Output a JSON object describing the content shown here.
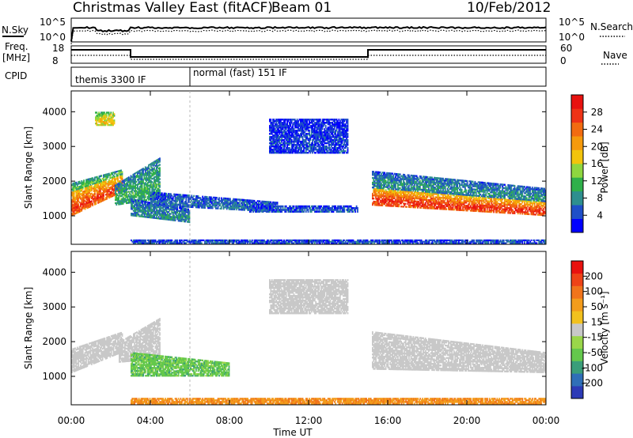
{
  "header": {
    "site": "Christmas Valley East (fitACF)",
    "beam": "Beam 01",
    "date": "10/Feb/2012"
  },
  "strip_panels": {
    "sky_label": "N.Sky",
    "search_label": "N.Search",
    "freq_label_line1": "Freq.",
    "freq_label_line2": "[MHz]",
    "nave_label": "Nave",
    "cpid_label": "CPID",
    "noise_left_ticks": [
      "10^5",
      "10^0"
    ],
    "noise_right_ticks": [
      "10^5",
      "10^0"
    ],
    "freq_left_ticks": [
      "18",
      "8"
    ],
    "nave_right_ticks": [
      "60",
      "0"
    ],
    "cpid_segments": [
      {
        "label": "themis 3300 IF",
        "start_hour": 0
      },
      {
        "label": "normal (fast) 151 IF",
        "start_hour": 6
      }
    ],
    "freq_steps": [
      {
        "start_hour": 0,
        "end_hour": 3,
        "level": "high"
      },
      {
        "start_hour": 3,
        "end_hour": 15,
        "level": "low"
      },
      {
        "start_hour": 15,
        "end_hour": 24,
        "level": "high"
      }
    ]
  },
  "axis": {
    "xlabel": "Time UT",
    "xticks": [
      "00:00",
      "04:00",
      "08:00",
      "12:00",
      "16:00",
      "20:00",
      "00:00"
    ],
    "ylabel": "Slant Range [km]",
    "yticks": [
      "1000",
      "2000",
      "3000",
      "4000"
    ]
  },
  "colorbars": {
    "power": {
      "label": "Power [dB]",
      "ticks": [
        "4",
        "8",
        "12",
        "16",
        "20",
        "24",
        "28"
      ],
      "colors": [
        "#0000ff",
        "#1f4fc8",
        "#2e8f8f",
        "#2fb04a",
        "#8fd63f",
        "#f2c40c",
        "#f59a0c",
        "#f26b10",
        "#ee3316",
        "#e8120f"
      ]
    },
    "velocity": {
      "label": "Velocity [m s⁻¹]",
      "ticks": [
        "200",
        "100",
        "50",
        "15",
        "-15",
        "-50",
        "-100",
        "-200"
      ],
      "colors": [
        "#2c3ab6",
        "#2f6fb8",
        "#3a9e7a",
        "#64c84c",
        "#9ad64a",
        "#c8c8c8",
        "#f2c11e",
        "#f39c1c",
        "#f1741b",
        "#ee4317",
        "#e8120f"
      ]
    }
  },
  "chart_data": {
    "type": "heatmap",
    "title": "Christmas Valley East (fitACF) Beam 01 10/Feb/2012",
    "xlabel": "Time UT",
    "ylabel": "Slant Range [km]",
    "xlim_hours": [
      0,
      24
    ],
    "ylim_km": [
      180,
      4600
    ],
    "panels": [
      {
        "name": "Power [dB]",
        "scale": [
          0,
          30
        ],
        "regions": [
          {
            "t0": 0.0,
            "t1": 2.6,
            "r0_start": 1000,
            "r1_start": 1700,
            "r0_end": 1700,
            "r1_end": 2200,
            "value": 26
          },
          {
            "t0": 0.0,
            "t1": 2.6,
            "r0_start": 1700,
            "r1_start": 1950,
            "r0_end": 2200,
            "r1_end": 2350,
            "value": 12
          },
          {
            "t0": 2.2,
            "t1": 4.5,
            "r0_start": 1300,
            "r1_start": 1900,
            "r0_end": 1500,
            "r1_end": 2700,
            "value": 10
          },
          {
            "t0": 3.0,
            "t1": 6.0,
            "r0_start": 1000,
            "r1_start": 1500,
            "r0_end": 800,
            "r1_end": 1200,
            "value": 8
          },
          {
            "t0": 4.0,
            "t1": 10.5,
            "r0_start": 1300,
            "r1_start": 1700,
            "r0_end": 1100,
            "r1_end": 1400,
            "value": 6
          },
          {
            "t0": 9.0,
            "t1": 14.5,
            "r0_start": 1100,
            "r1_start": 1300,
            "r0_end": 1100,
            "r1_end": 1300,
            "value": 5
          },
          {
            "t0": 3.0,
            "t1": 24.0,
            "r0_start": 200,
            "r1_start": 320,
            "r0_end": 200,
            "r1_end": 320,
            "value": 5
          },
          {
            "t0": 15.2,
            "t1": 24.0,
            "r0_start": 1300,
            "r1_start": 1800,
            "r0_end": 1000,
            "r1_end": 1400,
            "value": 27
          },
          {
            "t0": 15.2,
            "t1": 24.0,
            "r0_start": 1800,
            "r1_start": 2300,
            "r0_end": 1400,
            "r1_end": 1800,
            "value": 8
          },
          {
            "t0": 10.0,
            "t1": 14.0,
            "r0_start": 2800,
            "r1_start": 3800,
            "r0_end": 2800,
            "r1_end": 3800,
            "value": 4
          },
          {
            "t0": 1.2,
            "t1": 2.2,
            "r0_start": 3600,
            "r1_start": 4000,
            "r0_end": 3600,
            "r1_end": 4000,
            "value": 18
          }
        ]
      },
      {
        "name": "Velocity [m s⁻¹]",
        "scale": [
          -250,
          250
        ],
        "regions": [
          {
            "t0": 0.0,
            "t1": 2.6,
            "r0_start": 1100,
            "r1_start": 1800,
            "r0_end": 1700,
            "r1_end": 2300,
            "value": 0
          },
          {
            "t0": 2.4,
            "t1": 4.5,
            "r0_start": 1400,
            "r1_start": 2000,
            "r0_end": 1500,
            "r1_end": 2700,
            "value": 0
          },
          {
            "t0": 3.0,
            "t1": 8.0,
            "r0_start": 1000,
            "r1_start": 1700,
            "r0_end": 1000,
            "r1_end": 1400,
            "value": 40
          },
          {
            "t0": 3.0,
            "t1": 24.0,
            "r0_start": 200,
            "r1_start": 380,
            "r0_end": 200,
            "r1_end": 380,
            "value": -45
          },
          {
            "t0": 15.2,
            "t1": 24.0,
            "r0_start": 1200,
            "r1_start": 2300,
            "r0_end": 1100,
            "r1_end": 1700,
            "value": 0
          },
          {
            "t0": 10.0,
            "t1": 14.0,
            "r0_start": 2800,
            "r1_start": 3800,
            "r0_end": 2800,
            "r1_end": 3800,
            "value": 0
          }
        ]
      }
    ]
  }
}
